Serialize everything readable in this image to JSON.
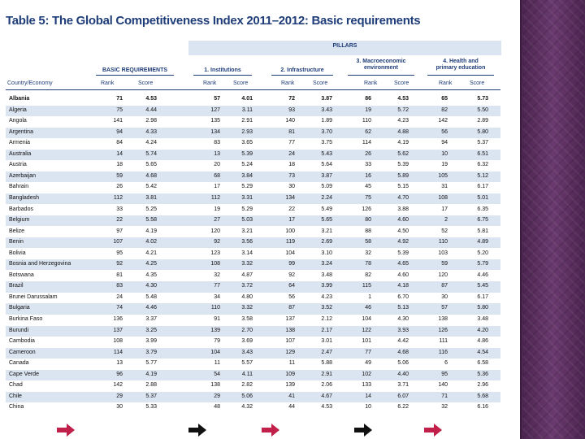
{
  "title": "Table 5: The Global Competitiveness Index 2011–2012: Basic requirements",
  "pillars_label": "PILLARS",
  "groups": {
    "basic": "BASIC REQUIREMENTS",
    "institutions": "1. Institutions",
    "infrastructure": "2. Infrastructure",
    "macro_line1": "3. Macroeconomic",
    "macro_line2": "environment",
    "health_line1": "4. Health and",
    "health_line2": "primary education"
  },
  "column_headers": {
    "country": "Country/Economy",
    "rank": "Rank",
    "score": "Score"
  },
  "rows": [
    {
      "country": "Albania",
      "br_rank": "71",
      "br_score": "4.53",
      "in_rank": "57",
      "in_score": "4.01",
      "if_rank": "72",
      "if_score": "3.87",
      "me_rank": "86",
      "me_score": "4.53",
      "he_rank": "65",
      "he_score": "5.73"
    },
    {
      "country": "Algeria",
      "br_rank": "75",
      "br_score": "4.44",
      "in_rank": "127",
      "in_score": "3.11",
      "if_rank": "93",
      "if_score": "3.43",
      "me_rank": "19",
      "me_score": "5.72",
      "he_rank": "82",
      "he_score": "5.50"
    },
    {
      "country": "Angola",
      "br_rank": "141",
      "br_score": "2.98",
      "in_rank": "135",
      "in_score": "2.91",
      "if_rank": "140",
      "if_score": "1.89",
      "me_rank": "110",
      "me_score": "4.23",
      "he_rank": "142",
      "he_score": "2.89"
    },
    {
      "country": "Argentina",
      "br_rank": "94",
      "br_score": "4.33",
      "in_rank": "134",
      "in_score": "2.93",
      "if_rank": "81",
      "if_score": "3.70",
      "me_rank": "62",
      "me_score": "4.88",
      "he_rank": "56",
      "he_score": "5.80"
    },
    {
      "country": "Armenia",
      "br_rank": "84",
      "br_score": "4.24",
      "in_rank": "83",
      "in_score": "3.65",
      "if_rank": "77",
      "if_score": "3.75",
      "me_rank": "114",
      "me_score": "4.19",
      "he_rank": "94",
      "he_score": "5.37"
    },
    {
      "country": "Australia",
      "br_rank": "14",
      "br_score": "5.74",
      "in_rank": "13",
      "in_score": "5.39",
      "if_rank": "24",
      "if_score": "5.43",
      "me_rank": "26",
      "me_score": "5.62",
      "he_rank": "10",
      "he_score": "6.51"
    },
    {
      "country": "Austria",
      "br_rank": "18",
      "br_score": "5.65",
      "in_rank": "20",
      "in_score": "5.24",
      "if_rank": "18",
      "if_score": "5.64",
      "me_rank": "33",
      "me_score": "5.39",
      "he_rank": "19",
      "he_score": "6.32"
    },
    {
      "country": "Azerbaijan",
      "br_rank": "59",
      "br_score": "4.68",
      "in_rank": "68",
      "in_score": "3.84",
      "if_rank": "73",
      "if_score": "3.87",
      "me_rank": "16",
      "me_score": "5.89",
      "he_rank": "105",
      "he_score": "5.12"
    },
    {
      "country": "Bahrain",
      "br_rank": "26",
      "br_score": "5.42",
      "in_rank": "17",
      "in_score": "5.29",
      "if_rank": "30",
      "if_score": "5.09",
      "me_rank": "45",
      "me_score": "5.15",
      "he_rank": "31",
      "he_score": "6.17"
    },
    {
      "country": "Bangladesh",
      "br_rank": "112",
      "br_score": "3.81",
      "in_rank": "112",
      "in_score": "3.31",
      "if_rank": "134",
      "if_score": "2.24",
      "me_rank": "75",
      "me_score": "4.70",
      "he_rank": "108",
      "he_score": "5.01"
    },
    {
      "country": "Barbados",
      "br_rank": "33",
      "br_score": "5.25",
      "in_rank": "19",
      "in_score": "5.29",
      "if_rank": "22",
      "if_score": "5.49",
      "me_rank": "126",
      "me_score": "3.88",
      "he_rank": "17",
      "he_score": "6.35"
    },
    {
      "country": "Belgium",
      "br_rank": "22",
      "br_score": "5.58",
      "in_rank": "27",
      "in_score": "5.03",
      "if_rank": "17",
      "if_score": "5.65",
      "me_rank": "80",
      "me_score": "4.60",
      "he_rank": "2",
      "he_score": "6.75"
    },
    {
      "country": "Belize",
      "br_rank": "97",
      "br_score": "4.19",
      "in_rank": "120",
      "in_score": "3.21",
      "if_rank": "100",
      "if_score": "3.21",
      "me_rank": "88",
      "me_score": "4.50",
      "he_rank": "52",
      "he_score": "5.81"
    },
    {
      "country": "Benin",
      "br_rank": "107",
      "br_score": "4.02",
      "in_rank": "92",
      "in_score": "3.56",
      "if_rank": "119",
      "if_score": "2.69",
      "me_rank": "58",
      "me_score": "4.92",
      "he_rank": "110",
      "he_score": "4.89"
    },
    {
      "country": "Bolivia",
      "br_rank": "95",
      "br_score": "4.21",
      "in_rank": "123",
      "in_score": "3.14",
      "if_rank": "104",
      "if_score": "3.10",
      "me_rank": "32",
      "me_score": "5.39",
      "he_rank": "103",
      "he_score": "5.20"
    },
    {
      "country": "Bosnia and Herzegovina",
      "br_rank": "92",
      "br_score": "4.25",
      "in_rank": "108",
      "in_score": "3.32",
      "if_rank": "99",
      "if_score": "3.24",
      "me_rank": "78",
      "me_score": "4.65",
      "he_rank": "59",
      "he_score": "5.79"
    },
    {
      "country": "Botswana",
      "br_rank": "81",
      "br_score": "4.35",
      "in_rank": "32",
      "in_score": "4.87",
      "if_rank": "92",
      "if_score": "3.48",
      "me_rank": "82",
      "me_score": "4.60",
      "he_rank": "120",
      "he_score": "4.46"
    },
    {
      "country": "Brazil",
      "br_rank": "83",
      "br_score": "4.30",
      "in_rank": "77",
      "in_score": "3.72",
      "if_rank": "64",
      "if_score": "3.99",
      "me_rank": "115",
      "me_score": "4.18",
      "he_rank": "87",
      "he_score": "5.45"
    },
    {
      "country": "Brunei Darussalam",
      "br_rank": "24",
      "br_score": "5.48",
      "in_rank": "34",
      "in_score": "4.80",
      "if_rank": "56",
      "if_score": "4.23",
      "me_rank": "1",
      "me_score": "6.70",
      "he_rank": "30",
      "he_score": "6.17"
    },
    {
      "country": "Bulgaria",
      "br_rank": "74",
      "br_score": "4.46",
      "in_rank": "110",
      "in_score": "3.32",
      "if_rank": "87",
      "if_score": "3.52",
      "me_rank": "46",
      "me_score": "5.13",
      "he_rank": "57",
      "he_score": "5.80"
    },
    {
      "country": "Burkina Faso",
      "br_rank": "136",
      "br_score": "3.37",
      "in_rank": "91",
      "in_score": "3.58",
      "if_rank": "137",
      "if_score": "2.12",
      "me_rank": "104",
      "me_score": "4.30",
      "he_rank": "138",
      "he_score": "3.48"
    },
    {
      "country": "Burundi",
      "br_rank": "137",
      "br_score": "3.25",
      "in_rank": "139",
      "in_score": "2.70",
      "if_rank": "138",
      "if_score": "2.17",
      "me_rank": "122",
      "me_score": "3.93",
      "he_rank": "126",
      "he_score": "4.20"
    },
    {
      "country": "Cambodia",
      "br_rank": "108",
      "br_score": "3.99",
      "in_rank": "79",
      "in_score": "3.69",
      "if_rank": "107",
      "if_score": "3.01",
      "me_rank": "101",
      "me_score": "4.42",
      "he_rank": "111",
      "he_score": "4.86"
    },
    {
      "country": "Cameroon",
      "br_rank": "114",
      "br_score": "3.79",
      "in_rank": "104",
      "in_score": "3.43",
      "if_rank": "129",
      "if_score": "2.47",
      "me_rank": "77",
      "me_score": "4.68",
      "he_rank": "116",
      "he_score": "4.54"
    },
    {
      "country": "Canada",
      "br_rank": "13",
      "br_score": "5.77",
      "in_rank": "11",
      "in_score": "5.57",
      "if_rank": "11",
      "if_score": "5.88",
      "me_rank": "49",
      "me_score": "5.06",
      "he_rank": "6",
      "he_score": "6.58"
    },
    {
      "country": "Cape Verde",
      "br_rank": "96",
      "br_score": "4.19",
      "in_rank": "54",
      "in_score": "4.11",
      "if_rank": "109",
      "if_score": "2.91",
      "me_rank": "102",
      "me_score": "4.40",
      "he_rank": "95",
      "he_score": "5.36"
    },
    {
      "country": "Chad",
      "br_rank": "142",
      "br_score": "2.88",
      "in_rank": "138",
      "in_score": "2.82",
      "if_rank": "139",
      "if_score": "2.06",
      "me_rank": "133",
      "me_score": "3.71",
      "he_rank": "140",
      "he_score": "2.96"
    },
    {
      "country": "Chile",
      "br_rank": "29",
      "br_score": "5.37",
      "in_rank": "29",
      "in_score": "5.06",
      "if_rank": "41",
      "if_score": "4.67",
      "me_rank": "14",
      "me_score": "6.07",
      "he_rank": "71",
      "he_score": "5.68"
    },
    {
      "country": "China",
      "br_rank": "30",
      "br_score": "5.33",
      "in_rank": "48",
      "in_score": "4.32",
      "if_rank": "44",
      "if_score": "4.53",
      "me_rank": "10",
      "me_score": "6.22",
      "he_rank": "32",
      "he_score": "6.16"
    }
  ],
  "colors": {
    "heading_blue": "#1f3d78",
    "band_blue": "#dbe4f1",
    "arrow_red": "#c0204a",
    "sidebar_purple": "#5a2f5e"
  },
  "icons": [
    "arrow-right-red-icon",
    "arrow-right-black-icon"
  ]
}
